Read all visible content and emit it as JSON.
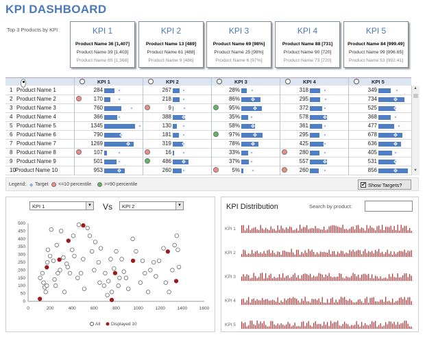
{
  "title": "KPI DASHBOARD",
  "top3_label": "Top 3 Products by KPI",
  "kpi_cards": [
    {
      "title": "KPI 1",
      "lines": [
        "Product Name 36 [1,407]",
        "Product Name 39 [1,403]",
        "Product Name 65 [1,368]"
      ]
    },
    {
      "title": "KPI 2",
      "lines": [
        "Product Name 13 [489]",
        "Product Name 61 [488]",
        "Product Name 9 [486]"
      ]
    },
    {
      "title": "KPI 3",
      "lines": [
        "Product Name 69 [98%]",
        "Product Name 25 [98%]",
        "Product Name 6 [97%]"
      ]
    },
    {
      "title": "KPI 4",
      "lines": [
        "Product Name 88 [731]",
        "Product Name 90 [720]",
        "Product Name 73 [720]"
      ]
    },
    {
      "title": "KPI 5",
      "lines": [
        "Product Name 84 [999.49]",
        "Product Name 99 [996.65]",
        "Product Name 53 [992.41]"
      ]
    }
  ],
  "table": {
    "headers": [
      "KPI 1",
      "KPI 2",
      "KPI 3",
      "KPI 4",
      "KPI 5"
    ],
    "rows": [
      {
        "n": "1",
        "name": "Product Name 1",
        "v": [
          "284",
          "267",
          "28%",
          "318",
          "349"
        ],
        "d": [
          "",
          "",
          "",
          "",
          ""
        ],
        "b": [
          0.3,
          0.2,
          0.15,
          0.3,
          0.35
        ],
        "t": [
          0.4,
          0.28,
          0.28,
          0.4,
          0.5
        ]
      },
      {
        "n": "2",
        "name": "Product Name 2",
        "v": [
          "170",
          "218",
          "86%",
          "295",
          "734"
        ],
        "d": [
          "red",
          "",
          "",
          "",
          ""
        ],
        "b": [
          0.18,
          0.2,
          0.55,
          0.3,
          0.75
        ],
        "t": [
          0.4,
          0.28,
          0.3,
          0.42,
          0.45
        ]
      },
      {
        "n": "3",
        "name": "Product Name 3",
        "v": [
          "760",
          "9",
          "95%",
          "372",
          "525"
        ],
        "d": [
          "",
          "red",
          "green",
          "",
          ""
        ],
        "b": [
          0.5,
          0.0,
          0.6,
          0.35,
          0.5
        ],
        "t": [
          0.75,
          0.3,
          0.35,
          0.4,
          0.45
        ]
      },
      {
        "n": "4",
        "name": "Product Name 4",
        "v": [
          "366",
          "388",
          "35%",
          "578",
          "368"
        ],
        "d": [
          "",
          "",
          "",
          "",
          ""
        ],
        "b": [
          0.38,
          0.35,
          0.2,
          0.5,
          0.35
        ],
        "t": [
          0.4,
          0.28,
          0.25,
          0.4,
          0.45
        ]
      },
      {
        "n": "5",
        "name": "Product Name 5",
        "v": [
          "1345",
          "130",
          "58%",
          "361",
          "477"
        ],
        "d": [
          "",
          "",
          "",
          "",
          ""
        ],
        "b": [
          0.9,
          0.12,
          0.4,
          0.35,
          0.45
        ],
        "t": [
          1.0,
          0.28,
          0.3,
          0.4,
          0.55
        ]
      },
      {
        "n": "6",
        "name": "Product Name 6",
        "v": [
          "790",
          "181",
          "97%",
          "295",
          "678"
        ],
        "d": [
          "",
          "",
          "green",
          "",
          ""
        ],
        "b": [
          0.5,
          0.18,
          0.62,
          0.28,
          0.7
        ],
        "t": [
          0.45,
          0.28,
          0.35,
          0.4,
          0.45
        ]
      },
      {
        "n": "7",
        "name": "Product Name 7",
        "v": [
          "1269",
          "319",
          "78%",
          "425",
          "636"
        ],
        "d": [
          "",
          "",
          "",
          "",
          ""
        ],
        "b": [
          0.85,
          0.3,
          0.5,
          0.4,
          0.65
        ],
        "t": [
          0.65,
          0.28,
          0.3,
          0.4,
          0.45
        ]
      },
      {
        "n": "8",
        "name": "Product Name 8",
        "v": [
          "107",
          "16",
          "33%",
          "280",
          "405"
        ],
        "d": [
          "red",
          "red",
          "",
          "red",
          ""
        ],
        "b": [
          0.08,
          0.03,
          0.2,
          0.28,
          0.4
        ],
        "t": [
          0.4,
          0.28,
          0.25,
          0.4,
          0.45
        ]
      },
      {
        "n": "9",
        "name": "Product Name 9",
        "v": [
          "501",
          "486",
          "37%",
          "557",
          "531"
        ],
        "d": [
          "",
          "green",
          "",
          "",
          ""
        ],
        "b": [
          0.35,
          0.45,
          0.22,
          0.5,
          0.5
        ],
        "t": [
          0.4,
          0.28,
          0.25,
          0.4,
          0.45
        ]
      },
      {
        "n": "10",
        "name": "Product Name 10",
        "v": [
          "953",
          "260",
          "5%",
          "260",
          "856"
        ],
        "d": [
          "",
          "",
          "red",
          "red",
          ""
        ],
        "b": [
          0.6,
          0.25,
          0.05,
          0.25,
          0.85
        ],
        "t": [
          0.4,
          0.28,
          0.3,
          0.4,
          0.45
        ]
      }
    ]
  },
  "legend": {
    "label": "Legend:",
    "target": "Target",
    "low": "<=10 percentile",
    "high": ">=90 percentile"
  },
  "show_targets": {
    "label": "Show Targets?",
    "checked": "✔"
  },
  "scatter": {
    "x_select": "KPI 1",
    "y_select": "KPI 2",
    "vs": "Vs",
    "legend_all": "All",
    "legend_disp": "Displayed 10",
    "xticks": [
      "0",
      "200",
      "400",
      "600",
      "800",
      "1000",
      "1200",
      "1400",
      "1600"
    ],
    "yticks": [
      "0",
      "50",
      "100",
      "150",
      "200",
      "250",
      "300",
      "350",
      "400",
      "450",
      "500"
    ]
  },
  "chart_data": {
    "type": "scatter",
    "xlabel": "KPI 1",
    "ylabel": "KPI 2",
    "xlim": [
      0,
      1600
    ],
    "ylim": [
      0,
      500
    ],
    "series": [
      {
        "name": "All",
        "points": [
          [
            110,
            150
          ],
          [
            130,
            180
          ],
          [
            140,
            120
          ],
          [
            150,
            90
          ],
          [
            160,
            60
          ],
          [
            170,
            100
          ],
          [
            175,
            250
          ],
          [
            180,
            330
          ],
          [
            200,
            290
          ],
          [
            210,
            460
          ],
          [
            230,
            260
          ],
          [
            240,
            140
          ],
          [
            250,
            100
          ],
          [
            260,
            360
          ],
          [
            270,
            180
          ],
          [
            290,
            200
          ],
          [
            300,
            450
          ],
          [
            320,
            280
          ],
          [
            330,
            60
          ],
          [
            350,
            240
          ],
          [
            360,
            220
          ],
          [
            380,
            180
          ],
          [
            400,
            330
          ],
          [
            410,
            420
          ],
          [
            420,
            290
          ],
          [
            450,
            150
          ],
          [
            460,
            490
          ],
          [
            480,
            180
          ],
          [
            500,
            270
          ],
          [
            510,
            80
          ],
          [
            540,
            470
          ],
          [
            560,
            420
          ],
          [
            580,
            320
          ],
          [
            600,
            200
          ],
          [
            610,
            380
          ],
          [
            640,
            250
          ],
          [
            650,
            120
          ],
          [
            660,
            340
          ],
          [
            690,
            100
          ],
          [
            700,
            180
          ],
          [
            720,
            40
          ],
          [
            730,
            130
          ],
          [
            750,
            270
          ],
          [
            760,
            60
          ],
          [
            780,
            210
          ],
          [
            800,
            320
          ],
          [
            820,
            100
          ],
          [
            830,
            150
          ],
          [
            850,
            270
          ],
          [
            870,
            190
          ],
          [
            890,
            150
          ],
          [
            910,
            80
          ],
          [
            950,
            400
          ],
          [
            980,
            320
          ],
          [
            1020,
            120
          ],
          [
            1040,
            260
          ],
          [
            1060,
            180
          ],
          [
            1090,
            60
          ],
          [
            1110,
            200
          ],
          [
            1140,
            250
          ],
          [
            1160,
            160
          ],
          [
            1190,
            260
          ],
          [
            1230,
            340
          ],
          [
            1250,
            120
          ],
          [
            1280,
            60
          ],
          [
            1310,
            200
          ],
          [
            1330,
            360
          ],
          [
            1350,
            420
          ],
          [
            1360,
            330
          ],
          [
            1370,
            220
          ]
        ]
      },
      {
        "name": "Displayed 10",
        "points": [
          [
            107,
            16
          ],
          [
            170,
            218
          ],
          [
            284,
            267
          ],
          [
            366,
            388
          ],
          [
            501,
            486
          ],
          [
            760,
            9
          ],
          [
            790,
            181
          ],
          [
            953,
            260
          ],
          [
            1269,
            319
          ],
          [
            1345,
            130
          ]
        ]
      }
    ]
  },
  "distribution": {
    "title": "KPI Distribution",
    "search_label": "Search by product:",
    "kpis": [
      "KPI 1",
      "KPI 2",
      "KPI 3",
      "KPI 4",
      "KPI 5"
    ]
  }
}
